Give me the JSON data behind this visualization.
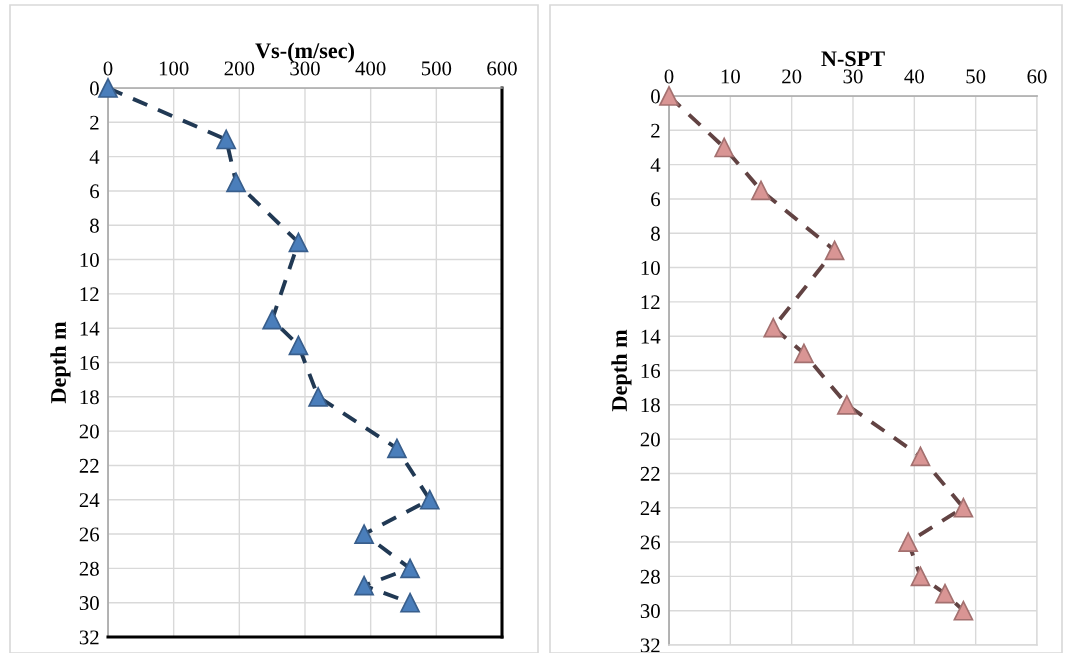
{
  "chart_data": [
    {
      "type": "line",
      "xlabel": "Vs-(m/sec)",
      "ylabel": "Depth m",
      "xlim": [
        0,
        600
      ],
      "xticks": [
        0,
        100,
        200,
        300,
        400,
        500,
        600
      ],
      "ylim": [
        32,
        0
      ],
      "yticks": [
        0,
        2,
        4,
        6,
        8,
        10,
        12,
        14,
        16,
        18,
        20,
        22,
        24,
        26,
        28,
        30,
        32
      ],
      "grid": true,
      "marker": "triangle",
      "line_style": "dashed",
      "series": [
        {
          "color": "#4a7ebb",
          "x": [
            0,
            180,
            195,
            290,
            250,
            290,
            320,
            440,
            490,
            390,
            460,
            390,
            460
          ],
          "values": [
            0,
            3,
            5.5,
            9,
            13.5,
            15,
            18,
            21,
            24,
            26,
            28,
            29,
            30
          ]
        }
      ]
    },
    {
      "type": "line",
      "xlabel": "N-SPT",
      "ylabel": "Depth m",
      "xlim": [
        0,
        60
      ],
      "xticks": [
        0,
        10,
        20,
        30,
        40,
        50,
        60
      ],
      "ylim": [
        32,
        0
      ],
      "yticks": [
        0,
        2,
        4,
        6,
        8,
        10,
        12,
        14,
        16,
        18,
        20,
        22,
        24,
        26,
        28,
        30,
        32
      ],
      "grid": true,
      "marker": "triangle",
      "line_style": "dashed",
      "series": [
        {
          "color": "#d99594",
          "x": [
            0,
            9,
            15,
            27,
            17,
            22,
            29,
            41,
            48,
            39,
            41,
            45,
            48
          ],
          "values": [
            0,
            3,
            5.5,
            9,
            13.5,
            15,
            18,
            21,
            24,
            26,
            28,
            29,
            30
          ]
        }
      ]
    }
  ]
}
